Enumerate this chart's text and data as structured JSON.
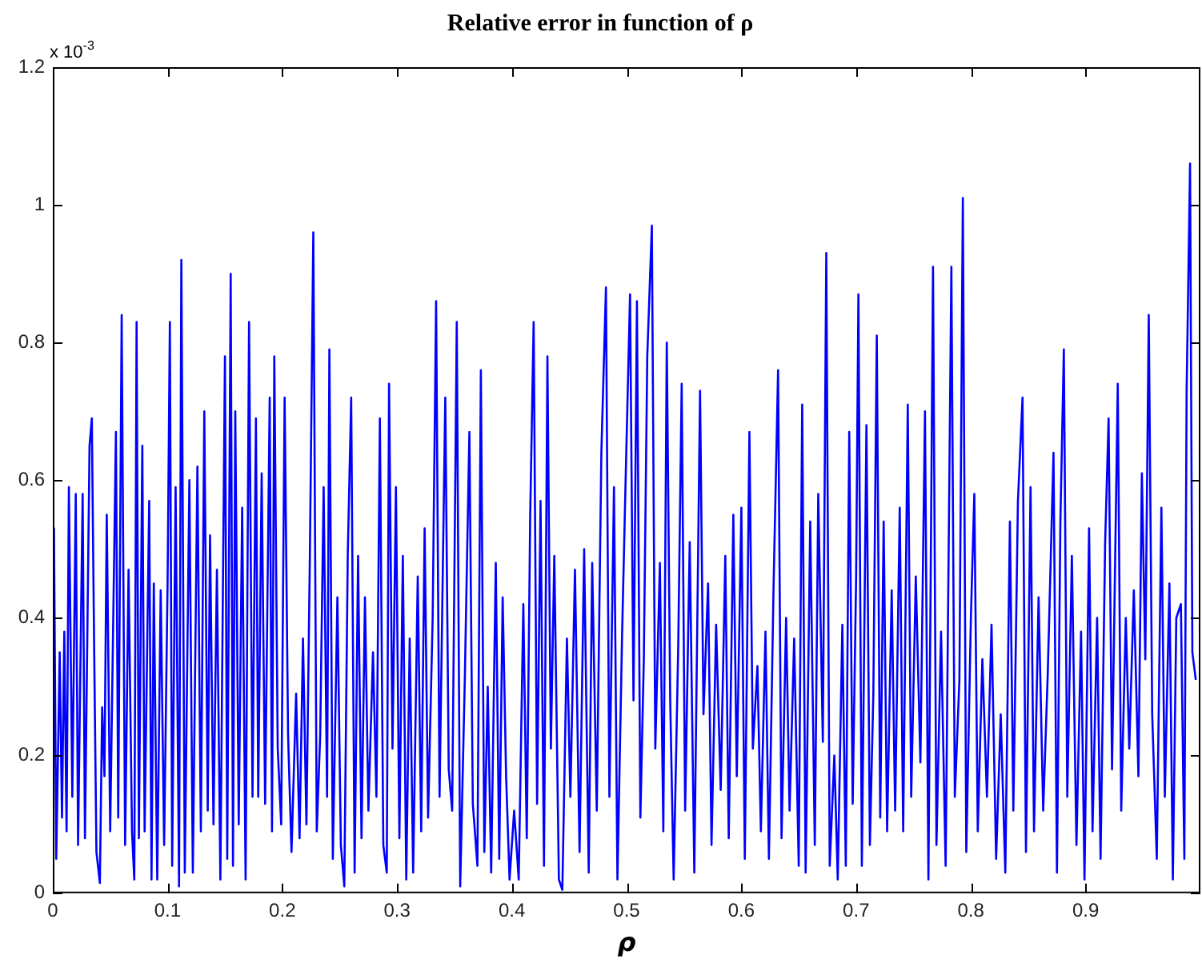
{
  "chart_data": {
    "type": "line",
    "title": "Relative error in function of ρ",
    "xlabel": "ρ",
    "annotations": [
      "x 10$^{-3}$"
    ],
    "xlim": [
      0,
      1
    ],
    "xticks": [
      0,
      0.1,
      0.2,
      0.3,
      0.4,
      0.5,
      0.6,
      0.7,
      0.8,
      0.9
    ],
    "ylim": [
      0,
      1.2
    ],
    "yticks": [
      0,
      0.2,
      0.4,
      0.6,
      0.8,
      1,
      1.2
    ],
    "grid": false,
    "legend": false,
    "marker": "none",
    "line_style": "solid",
    "series": [
      {
        "color": "#0000ff",
        "x": [
          0,
          0.001,
          0.003,
          0.006,
          0.008,
          0.01,
          0.012,
          0.014,
          0.017,
          0.02,
          0.022,
          0.026,
          0.028,
          0.032,
          0.034,
          0.036,
          0.038,
          0.041,
          0.043,
          0.045,
          0.047,
          0.05,
          0.055,
          0.057,
          0.06,
          0.063,
          0.066,
          0.069,
          0.071,
          0.073,
          0.075,
          0.078,
          0.08,
          0.084,
          0.086,
          0.088,
          0.091,
          0.094,
          0.097,
          0.1,
          0.102,
          0.104,
          0.107,
          0.11,
          0.112,
          0.115,
          0.119,
          0.122,
          0.126,
          0.129,
          0.132,
          0.135,
          0.137,
          0.14,
          0.143,
          0.146,
          0.15,
          0.152,
          0.155,
          0.157,
          0.159,
          0.162,
          0.165,
          0.168,
          0.171,
          0.174,
          0.177,
          0.179,
          0.182,
          0.185,
          0.189,
          0.191,
          0.193,
          0.196,
          0.199,
          0.202,
          0.205,
          0.208,
          0.212,
          0.215,
          0.218,
          0.221,
          0.224,
          0.227,
          0.23,
          0.233,
          0.236,
          0.239,
          0.241,
          0.244,
          0.248,
          0.251,
          0.254,
          0.257,
          0.26,
          0.263,
          0.266,
          0.269,
          0.272,
          0.275,
          0.279,
          0.282,
          0.285,
          0.288,
          0.291,
          0.293,
          0.296,
          0.299,
          0.302,
          0.305,
          0.308,
          0.311,
          0.314,
          0.318,
          0.321,
          0.324,
          0.327,
          0.331,
          0.334,
          0.337,
          0.342,
          0.345,
          0.348,
          0.352,
          0.355,
          0.359,
          0.363,
          0.366,
          0.37,
          0.373,
          0.376,
          0.379,
          0.382,
          0.386,
          0.389,
          0.392,
          0.395,
          0.398,
          0.402,
          0.406,
          0.41,
          0.413,
          0.416,
          0.419,
          0.422,
          0.425,
          0.428,
          0.431,
          0.434,
          0.437,
          0.441,
          0.444,
          0.448,
          0.451,
          0.455,
          0.459,
          0.463,
          0.467,
          0.47,
          0.474,
          0.478,
          0.482,
          0.485,
          0.489,
          0.492,
          0.496,
          0.499,
          0.503,
          0.506,
          0.509,
          0.512,
          0.515,
          0.518,
          0.522,
          0.525,
          0.529,
          0.532,
          0.535,
          0.538,
          0.541,
          0.545,
          0.548,
          0.551,
          0.555,
          0.559,
          0.564,
          0.567,
          0.571,
          0.574,
          0.578,
          0.582,
          0.586,
          0.589,
          0.593,
          0.596,
          0.6,
          0.603,
          0.607,
          0.61,
          0.614,
          0.617,
          0.621,
          0.624,
          0.628,
          0.632,
          0.635,
          0.639,
          0.642,
          0.646,
          0.65,
          0.653,
          0.656,
          0.66,
          0.664,
          0.667,
          0.671,
          0.674,
          0.677,
          0.681,
          0.684,
          0.688,
          0.691,
          0.694,
          0.697,
          0.7,
          0.702,
          0.705,
          0.709,
          0.712,
          0.715,
          0.718,
          0.721,
          0.724,
          0.727,
          0.731,
          0.734,
          0.738,
          0.741,
          0.745,
          0.748,
          0.752,
          0.756,
          0.76,
          0.763,
          0.767,
          0.77,
          0.774,
          0.778,
          0.783,
          0.786,
          0.79,
          0.793,
          0.796,
          0.8,
          0.803,
          0.806,
          0.81,
          0.814,
          0.818,
          0.822,
          0.826,
          0.83,
          0.834,
          0.837,
          0.841,
          0.845,
          0.848,
          0.852,
          0.855,
          0.859,
          0.863,
          0.867,
          0.872,
          0.875,
          0.878,
          0.881,
          0.884,
          0.888,
          0.892,
          0.896,
          0.899,
          0.903,
          0.906,
          0.91,
          0.913,
          0.917,
          0.92,
          0.923,
          0.928,
          0.931,
          0.935,
          0.938,
          0.942,
          0.946,
          0.949,
          0.952,
          0.955,
          0.958,
          0.962,
          0.966,
          0.969,
          0.973,
          0.976,
          0.979,
          0.983,
          0.986,
          0.988,
          0.991,
          0.993,
          0.996
        ],
        "values": [
          0.28,
          0.53,
          0.05,
          0.35,
          0.11,
          0.38,
          0.09,
          0.59,
          0.14,
          0.58,
          0.07,
          0.58,
          0.08,
          0.65,
          0.69,
          0.36,
          0.06,
          0.015,
          0.27,
          0.17,
          0.55,
          0.09,
          0.67,
          0.11,
          0.84,
          0.07,
          0.47,
          0.09,
          0.02,
          0.83,
          0.08,
          0.65,
          0.09,
          0.57,
          0.02,
          0.45,
          0.02,
          0.44,
          0.07,
          0.45,
          0.83,
          0.04,
          0.59,
          0.01,
          0.92,
          0.03,
          0.6,
          0.03,
          0.62,
          0.09,
          0.7,
          0.12,
          0.52,
          0.1,
          0.47,
          0.02,
          0.78,
          0.05,
          0.9,
          0.04,
          0.7,
          0.1,
          0.56,
          0.02,
          0.83,
          0.14,
          0.69,
          0.14,
          0.61,
          0.13,
          0.72,
          0.09,
          0.78,
          0.21,
          0.1,
          0.72,
          0.23,
          0.06,
          0.29,
          0.08,
          0.37,
          0.1,
          0.49,
          0.96,
          0.09,
          0.23,
          0.59,
          0.14,
          0.79,
          0.05,
          0.43,
          0.07,
          0.01,
          0.49,
          0.72,
          0.03,
          0.49,
          0.08,
          0.43,
          0.12,
          0.35,
          0.14,
          0.69,
          0.07,
          0.03,
          0.74,
          0.21,
          0.59,
          0.08,
          0.49,
          0.02,
          0.37,
          0.03,
          0.46,
          0.09,
          0.53,
          0.11,
          0.4,
          0.86,
          0.14,
          0.72,
          0.18,
          0.12,
          0.83,
          0.01,
          0.31,
          0.67,
          0.13,
          0.04,
          0.76,
          0.06,
          0.3,
          0.03,
          0.48,
          0.05,
          0.43,
          0.17,
          0.02,
          0.12,
          0.02,
          0.42,
          0.08,
          0.55,
          0.83,
          0.13,
          0.57,
          0.04,
          0.78,
          0.21,
          0.49,
          0.02,
          0.005,
          0.37,
          0.14,
          0.47,
          0.06,
          0.5,
          0.03,
          0.48,
          0.12,
          0.64,
          0.88,
          0.14,
          0.59,
          0.02,
          0.37,
          0.59,
          0.87,
          0.28,
          0.86,
          0.11,
          0.34,
          0.78,
          0.97,
          0.21,
          0.48,
          0.09,
          0.8,
          0.28,
          0.02,
          0.36,
          0.74,
          0.12,
          0.51,
          0.03,
          0.73,
          0.26,
          0.45,
          0.07,
          0.39,
          0.15,
          0.49,
          0.08,
          0.55,
          0.17,
          0.56,
          0.05,
          0.67,
          0.21,
          0.33,
          0.09,
          0.38,
          0.05,
          0.44,
          0.76,
          0.08,
          0.4,
          0.12,
          0.37,
          0.04,
          0.71,
          0.03,
          0.54,
          0.07,
          0.58,
          0.22,
          0.93,
          0.04,
          0.2,
          0.02,
          0.39,
          0.04,
          0.67,
          0.13,
          0.46,
          0.87,
          0.04,
          0.68,
          0.07,
          0.29,
          0.81,
          0.11,
          0.54,
          0.09,
          0.44,
          0.12,
          0.56,
          0.09,
          0.71,
          0.14,
          0.46,
          0.19,
          0.7,
          0.02,
          0.91,
          0.07,
          0.38,
          0.04,
          0.91,
          0.14,
          0.31,
          1.01,
          0.06,
          0.4,
          0.58,
          0.09,
          0.34,
          0.14,
          0.39,
          0.05,
          0.26,
          0.03,
          0.54,
          0.12,
          0.57,
          0.72,
          0.06,
          0.59,
          0.09,
          0.43,
          0.12,
          0.32,
          0.64,
          0.03,
          0.54,
          0.79,
          0.14,
          0.49,
          0.07,
          0.38,
          0.02,
          0.53,
          0.09,
          0.4,
          0.05,
          0.51,
          0.69,
          0.18,
          0.74,
          0.12,
          0.4,
          0.21,
          0.44,
          0.17,
          0.61,
          0.34,
          0.84,
          0.26,
          0.05,
          0.56,
          0.14,
          0.45,
          0.02,
          0.4,
          0.42,
          0.05,
          0.73,
          1.06,
          0.35,
          0.31
        ]
      }
    ]
  }
}
